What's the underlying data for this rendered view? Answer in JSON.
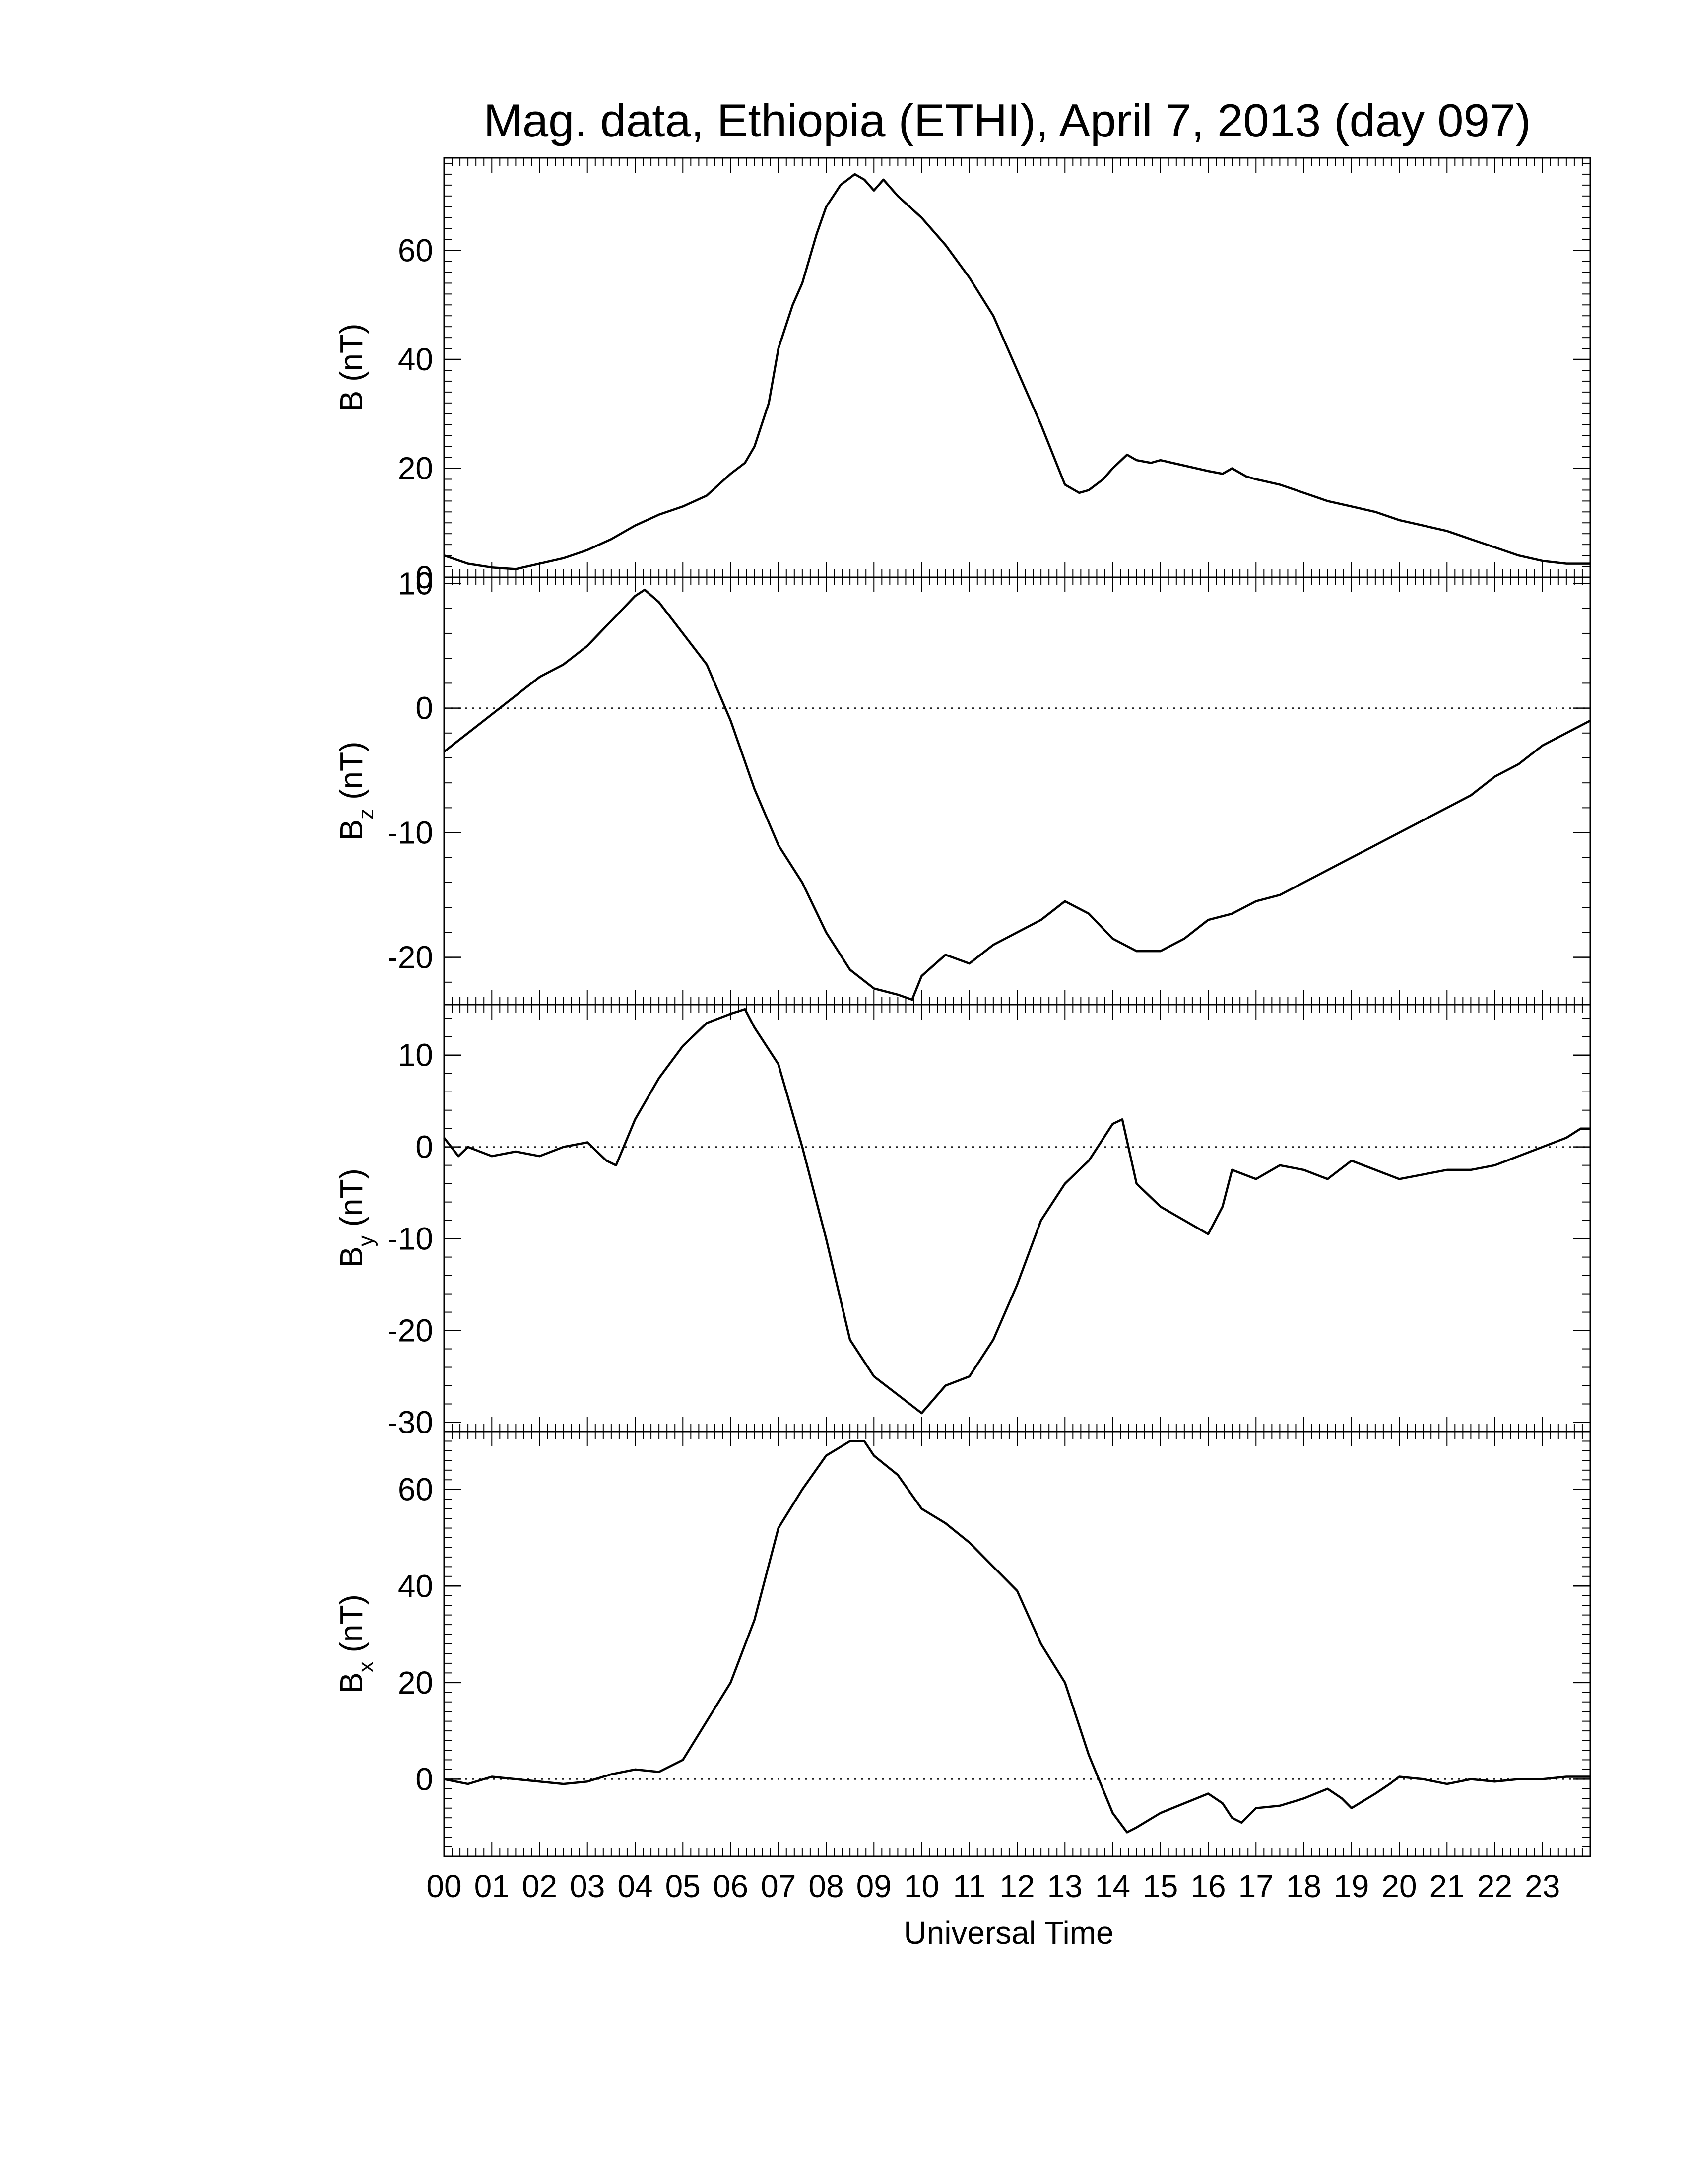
{
  "chart_data": {
    "type": "line",
    "title": "Mag. data, Ethiopia (ETHI), April 7, 2013 (day 097)",
    "xlabel": "Universal Time",
    "xlim": [
      0,
      24
    ],
    "x_tick_labels": [
      "00",
      "01",
      "02",
      "03",
      "04",
      "05",
      "06",
      "07",
      "08",
      "09",
      "10",
      "11",
      "12",
      "13",
      "14",
      "15",
      "16",
      "17",
      "18",
      "19",
      "20",
      "21",
      "22",
      "23"
    ],
    "line_color": "#000000",
    "zero_line": "dotted",
    "panels": [
      {
        "id": "B",
        "ylabel_main": "B",
        "ylabel_sub": "",
        "ylabel_unit": " (nT)",
        "ylim": [
          0,
          77
        ],
        "yticks": [
          0,
          20,
          40,
          60
        ],
        "x": [
          0,
          0.5,
          1,
          1.5,
          2,
          2.5,
          3,
          3.5,
          4,
          4.5,
          5,
          5.5,
          6,
          6.3,
          6.5,
          6.8,
          7,
          7.3,
          7.5,
          7.8,
          8,
          8.3,
          8.6,
          8.8,
          9,
          9.2,
          9.5,
          10,
          10.5,
          11,
          11.5,
          12,
          12.5,
          13,
          13.3,
          13.5,
          13.8,
          14,
          14.3,
          14.5,
          14.8,
          15,
          15.5,
          16,
          16.3,
          16.5,
          16.8,
          17,
          17.5,
          18,
          18.5,
          19,
          19.5,
          20,
          20.5,
          21,
          21.5,
          22,
          22.5,
          23,
          23.5,
          24
        ],
        "values": [
          4,
          2.5,
          1.8,
          1.5,
          2.5,
          3.5,
          5,
          7,
          9.5,
          11.5,
          13,
          15,
          19,
          21,
          24,
          32,
          42,
          50,
          54,
          63,
          68,
          72,
          74,
          73,
          71,
          73,
          70,
          66,
          61,
          55,
          48,
          38,
          28,
          17,
          15.5,
          16,
          18,
          20,
          22.5,
          21.5,
          21,
          21.5,
          20.5,
          19.5,
          19,
          20,
          18.5,
          18,
          17,
          15.5,
          14,
          13,
          12,
          10.5,
          9.5,
          8.5,
          7,
          5.5,
          4,
          3,
          2.5,
          2.5
        ]
      },
      {
        "id": "Bz",
        "ylabel_main": "B",
        "ylabel_sub": "z",
        "ylabel_unit": " (nT)",
        "ylim": [
          -23.8,
          10.5
        ],
        "yticks": [
          -20,
          -10,
          0,
          10
        ],
        "x": [
          0,
          0.5,
          1,
          1.5,
          2,
          2.5,
          3,
          3.5,
          4,
          4.2,
          4.5,
          5,
          5.5,
          6,
          6.5,
          7,
          7.5,
          8,
          8.5,
          9,
          9.5,
          9.8,
          10,
          10.5,
          11,
          11.5,
          12,
          12.5,
          13,
          13.5,
          14,
          14.5,
          15,
          15.5,
          16,
          16.5,
          17,
          17.5,
          18,
          18.5,
          19,
          19.5,
          20,
          20.5,
          21,
          21.5,
          22,
          22.5,
          23,
          23.5,
          24
        ],
        "values": [
          -3.5,
          -2,
          -0.5,
          1,
          2.5,
          3.5,
          5,
          7,
          9,
          9.5,
          8.5,
          6,
          3.5,
          -1,
          -6.5,
          -11,
          -14,
          -18,
          -21,
          -22.5,
          -23,
          -23.4,
          -21.5,
          -19.8,
          -20.5,
          -19,
          -18,
          -17,
          -15.5,
          -16.5,
          -18.5,
          -19.5,
          -19.5,
          -18.5,
          -17,
          -16.5,
          -15.5,
          -15,
          -14,
          -13,
          -12,
          -11,
          -10,
          -9,
          -8,
          -7,
          -5.5,
          -4.5,
          -3,
          -2,
          -1
        ]
      },
      {
        "id": "By",
        "ylabel_main": "B",
        "ylabel_sub": "y",
        "ylabel_unit": " (nT)",
        "ylim": [
          -31,
          15.5
        ],
        "yticks": [
          -30,
          -20,
          -10,
          0,
          10
        ],
        "x": [
          0,
          0.3,
          0.5,
          1,
          1.5,
          2,
          2.5,
          3,
          3.4,
          3.6,
          4,
          4.5,
          5,
          5.5,
          6,
          6.3,
          6.5,
          7,
          7.5,
          8,
          8.5,
          9,
          9.5,
          10,
          10.5,
          11,
          11.5,
          12,
          12.5,
          13,
          13.5,
          14,
          14.2,
          14.5,
          15,
          15.5,
          16,
          16.3,
          16.5,
          17,
          17.5,
          18,
          18.5,
          19,
          19.5,
          20,
          20.5,
          21,
          21.5,
          22,
          22.5,
          23,
          23.5,
          23.8,
          24
        ],
        "values": [
          1,
          -1,
          0,
          -1,
          -0.5,
          -1,
          0,
          0.5,
          -1.5,
          -2,
          3,
          7.5,
          11,
          13.5,
          14.5,
          15,
          13,
          9,
          0,
          -10,
          -21,
          -25,
          -27,
          -29,
          -26,
          -25,
          -21,
          -15,
          -8,
          -4,
          -1.5,
          2.5,
          3,
          -4,
          -6.5,
          -8,
          -9.5,
          -6.5,
          -2.5,
          -3.5,
          -2,
          -2.5,
          -3.5,
          -1.5,
          -2.5,
          -3.5,
          -3,
          -2.5,
          -2.5,
          -2,
          -1,
          0,
          1,
          2,
          2
        ]
      },
      {
        "id": "Bx",
        "ylabel_main": "B",
        "ylabel_sub": "x",
        "ylabel_unit": " (nT)",
        "ylim": [
          -16,
          72
        ],
        "yticks": [
          0,
          20,
          40,
          60
        ],
        "x": [
          0,
          0.5,
          1,
          1.5,
          2,
          2.5,
          3,
          3.5,
          4,
          4.5,
          5,
          5.5,
          6,
          6.5,
          7,
          7.5,
          8,
          8.5,
          8.8,
          9,
          9.5,
          10,
          10.5,
          11,
          11.5,
          12,
          12.5,
          13,
          13.5,
          14,
          14.3,
          14.5,
          15,
          15.5,
          16,
          16.3,
          16.5,
          16.7,
          17,
          17.5,
          18,
          18.5,
          18.8,
          19,
          19.5,
          19.8,
          20,
          20.5,
          21,
          21.5,
          22,
          22.5,
          23,
          23.5,
          24
        ],
        "values": [
          0,
          -1,
          0.5,
          0,
          -0.5,
          -1,
          -0.5,
          1,
          2,
          1.5,
          4,
          12,
          20,
          33,
          52,
          60,
          67,
          70,
          70,
          67,
          63,
          56,
          53,
          49,
          44,
          39,
          28,
          20,
          5,
          -7,
          -11,
          -10,
          -7,
          -5,
          -3,
          -5,
          -8,
          -9,
          -6,
          -5.5,
          -4,
          -2,
          -4,
          -6,
          -3,
          -1,
          0.5,
          0,
          -1,
          0,
          -0.5,
          0,
          0,
          0.5,
          0.5
        ]
      }
    ]
  }
}
